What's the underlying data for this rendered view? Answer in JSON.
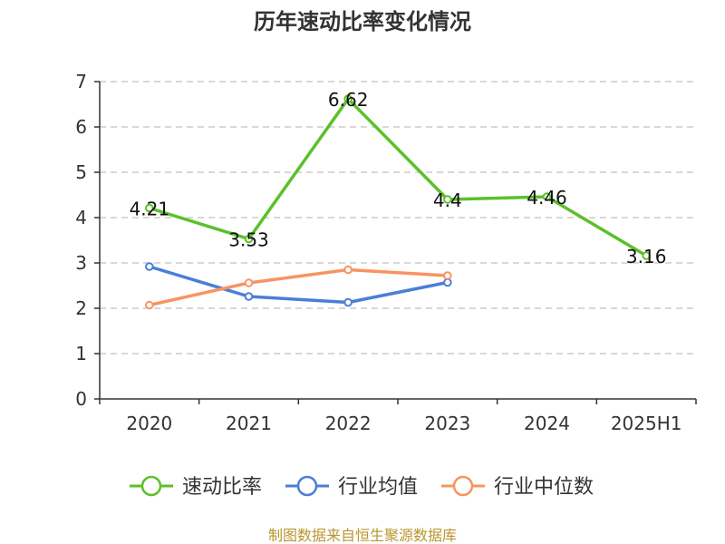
{
  "chart_data": {
    "type": "line",
    "title": "历年速动比率变化情况",
    "categories": [
      "2020",
      "2021",
      "2022",
      "2023",
      "2024",
      "2025H1"
    ],
    "ylim": [
      0,
      7
    ],
    "yticks": [
      "0",
      "1",
      "2",
      "3",
      "4",
      "5",
      "6",
      "7"
    ],
    "grid": true,
    "legend_position": "bottom",
    "series": [
      {
        "name": "速动比率",
        "color": "#5cc02a",
        "values": [
          4.21,
          3.53,
          6.62,
          4.4,
          4.46,
          3.16
        ],
        "labels": [
          "4.21",
          "3.53",
          "6.62",
          "4.4",
          "4.46",
          "3.16"
        ]
      },
      {
        "name": "行业均值",
        "color": "#4a7fd6",
        "values": [
          2.92,
          2.26,
          2.13,
          2.57,
          null,
          null
        ]
      },
      {
        "name": "行业中位数",
        "color": "#f79462",
        "values": [
          2.07,
          2.56,
          2.85,
          2.72,
          null,
          null
        ]
      }
    ],
    "source": "制图数据来自恒生聚源数据库"
  }
}
